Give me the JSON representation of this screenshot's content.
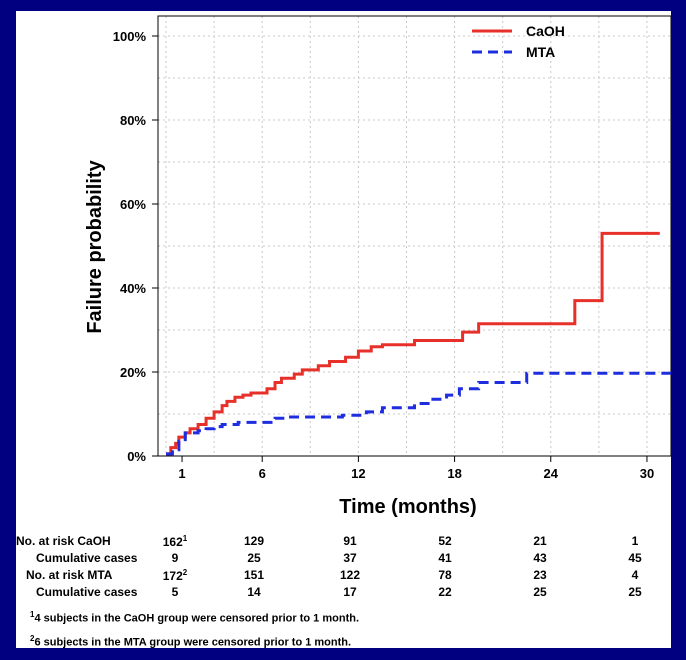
{
  "chart_data": {
    "type": "line",
    "step": true,
    "xlabel": "Time (months)",
    "ylabel": "Failure probability",
    "xticks": [
      1,
      6,
      12,
      18,
      24,
      30
    ],
    "yticks": [
      "0%",
      "20%",
      "40%",
      "60%",
      "80%",
      "100%"
    ],
    "xlim": [
      -0.5,
      31.5
    ],
    "ylim": [
      0,
      1
    ],
    "grid": true,
    "legend_position": "top-right",
    "series": [
      {
        "name": "CaOH",
        "color": "#e8302a",
        "style": "solid",
        "points": [
          [
            0,
            0.005
          ],
          [
            0.3,
            0.02
          ],
          [
            0.6,
            0.03
          ],
          [
            0.8,
            0.045
          ],
          [
            1.2,
            0.055
          ],
          [
            1.5,
            0.065
          ],
          [
            2.0,
            0.075
          ],
          [
            2.5,
            0.09
          ],
          [
            3.0,
            0.105
          ],
          [
            3.5,
            0.12
          ],
          [
            3.8,
            0.13
          ],
          [
            4.3,
            0.14
          ],
          [
            4.8,
            0.145
          ],
          [
            5.3,
            0.15
          ],
          [
            6.3,
            0.16
          ],
          [
            6.8,
            0.175
          ],
          [
            7.2,
            0.185
          ],
          [
            8.0,
            0.195
          ],
          [
            8.5,
            0.205
          ],
          [
            9.5,
            0.215
          ],
          [
            10.2,
            0.225
          ],
          [
            11.2,
            0.235
          ],
          [
            12.0,
            0.25
          ],
          [
            12.8,
            0.26
          ],
          [
            13.5,
            0.265
          ],
          [
            15.5,
            0.275
          ],
          [
            18.5,
            0.295
          ],
          [
            19.5,
            0.315
          ],
          [
            25.5,
            0.37
          ],
          [
            27.2,
            0.53
          ],
          [
            30.8,
            0.53
          ]
        ]
      },
      {
        "name": "MTA",
        "color": "#1f2de0",
        "style": "dashed",
        "points": [
          [
            0,
            0.005
          ],
          [
            0.4,
            0.015
          ],
          [
            0.8,
            0.035
          ],
          [
            1.2,
            0.055
          ],
          [
            2.0,
            0.06
          ],
          [
            2.5,
            0.065
          ],
          [
            3.0,
            0.07
          ],
          [
            3.5,
            0.075
          ],
          [
            4.5,
            0.08
          ],
          [
            6.8,
            0.09
          ],
          [
            7.5,
            0.093
          ],
          [
            11.0,
            0.097
          ],
          [
            12.5,
            0.105
          ],
          [
            13.5,
            0.115
          ],
          [
            15.5,
            0.125
          ],
          [
            16.5,
            0.135
          ],
          [
            17.5,
            0.145
          ],
          [
            18.3,
            0.16
          ],
          [
            19.5,
            0.175
          ],
          [
            22.5,
            0.197
          ],
          [
            31.5,
            0.197
          ]
        ]
      }
    ]
  },
  "risk_table": {
    "rows": [
      {
        "label": "No. at risk CaOH",
        "values": [
          "162",
          "129",
          "91",
          "52",
          "21",
          "1"
        ],
        "first_sup": "1"
      },
      {
        "label": "Cumulative cases",
        "values": [
          "9",
          "25",
          "37",
          "41",
          "43",
          "45"
        ],
        "first_sup": ""
      },
      {
        "label": "No. at risk MTA",
        "values": [
          "172",
          "151",
          "122",
          "78",
          "23",
          "4"
        ],
        "first_sup": "2"
      },
      {
        "label": "Cumulative cases",
        "values": [
          "5",
          "14",
          "17",
          "22",
          "25",
          "25"
        ],
        "first_sup": ""
      }
    ]
  },
  "footnotes": [
    {
      "sup": "1",
      "text": "4 subjects in the CaOH group were censored prior to 1 month."
    },
    {
      "sup": "2",
      "text": "6 subjects in the MTA group were censored prior to 1 month."
    }
  ]
}
